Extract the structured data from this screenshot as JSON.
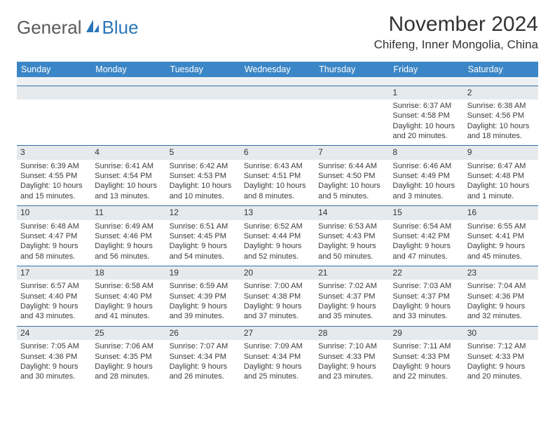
{
  "brand": {
    "part1": "General",
    "part2": "Blue"
  },
  "title": "November 2024",
  "location": "Chifeng, Inner Mongolia, China",
  "colors": {
    "header_bg": "#3b86c6",
    "header_text": "#ffffff",
    "row_bg": "#e7eaec",
    "row_border": "#2f6fa8",
    "text": "#3c3c3c",
    "brand_gray": "#5a5a5a",
    "brand_blue": "#2a76b8",
    "background": "#ffffff"
  },
  "typography": {
    "title_fontsize": 30,
    "location_fontsize": 17,
    "header_fontsize": 12.5,
    "daynum_fontsize": 12,
    "cell_fontsize": 11,
    "logo_fontsize": 26
  },
  "daynames": [
    "Sunday",
    "Monday",
    "Tuesday",
    "Wednesday",
    "Thursday",
    "Friday",
    "Saturday"
  ],
  "weeks": [
    {
      "nums": [
        "",
        "",
        "",
        "",
        "",
        "1",
        "2"
      ],
      "cells": [
        [],
        [],
        [],
        [],
        [],
        [
          "Sunrise: 6:37 AM",
          "Sunset: 4:58 PM",
          "Daylight: 10 hours",
          "and 20 minutes."
        ],
        [
          "Sunrise: 6:38 AM",
          "Sunset: 4:56 PM",
          "Daylight: 10 hours",
          "and 18 minutes."
        ]
      ]
    },
    {
      "nums": [
        "3",
        "4",
        "5",
        "6",
        "7",
        "8",
        "9"
      ],
      "cells": [
        [
          "Sunrise: 6:39 AM",
          "Sunset: 4:55 PM",
          "Daylight: 10 hours",
          "and 15 minutes."
        ],
        [
          "Sunrise: 6:41 AM",
          "Sunset: 4:54 PM",
          "Daylight: 10 hours",
          "and 13 minutes."
        ],
        [
          "Sunrise: 6:42 AM",
          "Sunset: 4:53 PM",
          "Daylight: 10 hours",
          "and 10 minutes."
        ],
        [
          "Sunrise: 6:43 AM",
          "Sunset: 4:51 PM",
          "Daylight: 10 hours",
          "and 8 minutes."
        ],
        [
          "Sunrise: 6:44 AM",
          "Sunset: 4:50 PM",
          "Daylight: 10 hours",
          "and 5 minutes."
        ],
        [
          "Sunrise: 6:46 AM",
          "Sunset: 4:49 PM",
          "Daylight: 10 hours",
          "and 3 minutes."
        ],
        [
          "Sunrise: 6:47 AM",
          "Sunset: 4:48 PM",
          "Daylight: 10 hours",
          "and 1 minute."
        ]
      ]
    },
    {
      "nums": [
        "10",
        "11",
        "12",
        "13",
        "14",
        "15",
        "16"
      ],
      "cells": [
        [
          "Sunrise: 6:48 AM",
          "Sunset: 4:47 PM",
          "Daylight: 9 hours",
          "and 58 minutes."
        ],
        [
          "Sunrise: 6:49 AM",
          "Sunset: 4:46 PM",
          "Daylight: 9 hours",
          "and 56 minutes."
        ],
        [
          "Sunrise: 6:51 AM",
          "Sunset: 4:45 PM",
          "Daylight: 9 hours",
          "and 54 minutes."
        ],
        [
          "Sunrise: 6:52 AM",
          "Sunset: 4:44 PM",
          "Daylight: 9 hours",
          "and 52 minutes."
        ],
        [
          "Sunrise: 6:53 AM",
          "Sunset: 4:43 PM",
          "Daylight: 9 hours",
          "and 50 minutes."
        ],
        [
          "Sunrise: 6:54 AM",
          "Sunset: 4:42 PM",
          "Daylight: 9 hours",
          "and 47 minutes."
        ],
        [
          "Sunrise: 6:55 AM",
          "Sunset: 4:41 PM",
          "Daylight: 9 hours",
          "and 45 minutes."
        ]
      ]
    },
    {
      "nums": [
        "17",
        "18",
        "19",
        "20",
        "21",
        "22",
        "23"
      ],
      "cells": [
        [
          "Sunrise: 6:57 AM",
          "Sunset: 4:40 PM",
          "Daylight: 9 hours",
          "and 43 minutes."
        ],
        [
          "Sunrise: 6:58 AM",
          "Sunset: 4:40 PM",
          "Daylight: 9 hours",
          "and 41 minutes."
        ],
        [
          "Sunrise: 6:59 AM",
          "Sunset: 4:39 PM",
          "Daylight: 9 hours",
          "and 39 minutes."
        ],
        [
          "Sunrise: 7:00 AM",
          "Sunset: 4:38 PM",
          "Daylight: 9 hours",
          "and 37 minutes."
        ],
        [
          "Sunrise: 7:02 AM",
          "Sunset: 4:37 PM",
          "Daylight: 9 hours",
          "and 35 minutes."
        ],
        [
          "Sunrise: 7:03 AM",
          "Sunset: 4:37 PM",
          "Daylight: 9 hours",
          "and 33 minutes."
        ],
        [
          "Sunrise: 7:04 AM",
          "Sunset: 4:36 PM",
          "Daylight: 9 hours",
          "and 32 minutes."
        ]
      ]
    },
    {
      "nums": [
        "24",
        "25",
        "26",
        "27",
        "28",
        "29",
        "30"
      ],
      "cells": [
        [
          "Sunrise: 7:05 AM",
          "Sunset: 4:36 PM",
          "Daylight: 9 hours",
          "and 30 minutes."
        ],
        [
          "Sunrise: 7:06 AM",
          "Sunset: 4:35 PM",
          "Daylight: 9 hours",
          "and 28 minutes."
        ],
        [
          "Sunrise: 7:07 AM",
          "Sunset: 4:34 PM",
          "Daylight: 9 hours",
          "and 26 minutes."
        ],
        [
          "Sunrise: 7:09 AM",
          "Sunset: 4:34 PM",
          "Daylight: 9 hours",
          "and 25 minutes."
        ],
        [
          "Sunrise: 7:10 AM",
          "Sunset: 4:33 PM",
          "Daylight: 9 hours",
          "and 23 minutes."
        ],
        [
          "Sunrise: 7:11 AM",
          "Sunset: 4:33 PM",
          "Daylight: 9 hours",
          "and 22 minutes."
        ],
        [
          "Sunrise: 7:12 AM",
          "Sunset: 4:33 PM",
          "Daylight: 9 hours",
          "and 20 minutes."
        ]
      ]
    }
  ]
}
